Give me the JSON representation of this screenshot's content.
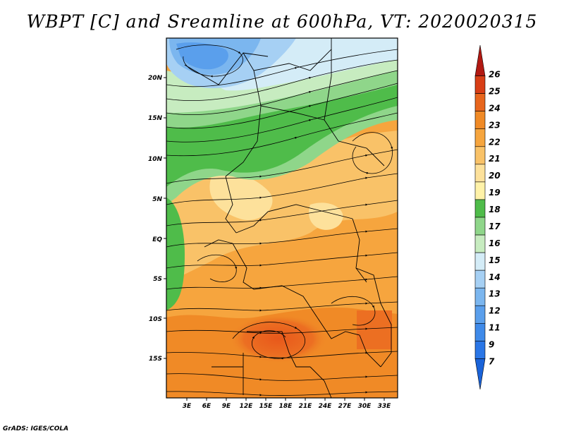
{
  "title": "WBPT [C] and Sreamline at 600hPa, VT: 2020020315",
  "credit": "GrADS: IGES/COLA",
  "map": {
    "lat_labels": [
      "20N",
      "15N",
      "10N",
      "5N",
      "EQ",
      "5S",
      "10S",
      "15S"
    ],
    "lon_labels": [
      "3E",
      "6E",
      "9E",
      "12E",
      "15E",
      "18E",
      "21E",
      "24E",
      "27E",
      "30E",
      "33E"
    ]
  },
  "colorbar": {
    "levels": [
      "7",
      "9",
      "11",
      "12",
      "13",
      "14",
      "15",
      "16",
      "17",
      "18",
      "19",
      "20",
      "21",
      "22",
      "23",
      "24",
      "25",
      "26"
    ],
    "colors": [
      "#1a63d9",
      "#2a76e6",
      "#3f8ae9",
      "#5a9fec",
      "#7bb6ef",
      "#a6d0f4",
      "#d4ecf7",
      "#c7ecc0",
      "#8fd68a",
      "#4fbc4a",
      "#fff2a8",
      "#fde19b",
      "#f9c268",
      "#f6a53e",
      "#f08a26",
      "#e8661d",
      "#d83e16",
      "#b21912"
    ]
  }
}
